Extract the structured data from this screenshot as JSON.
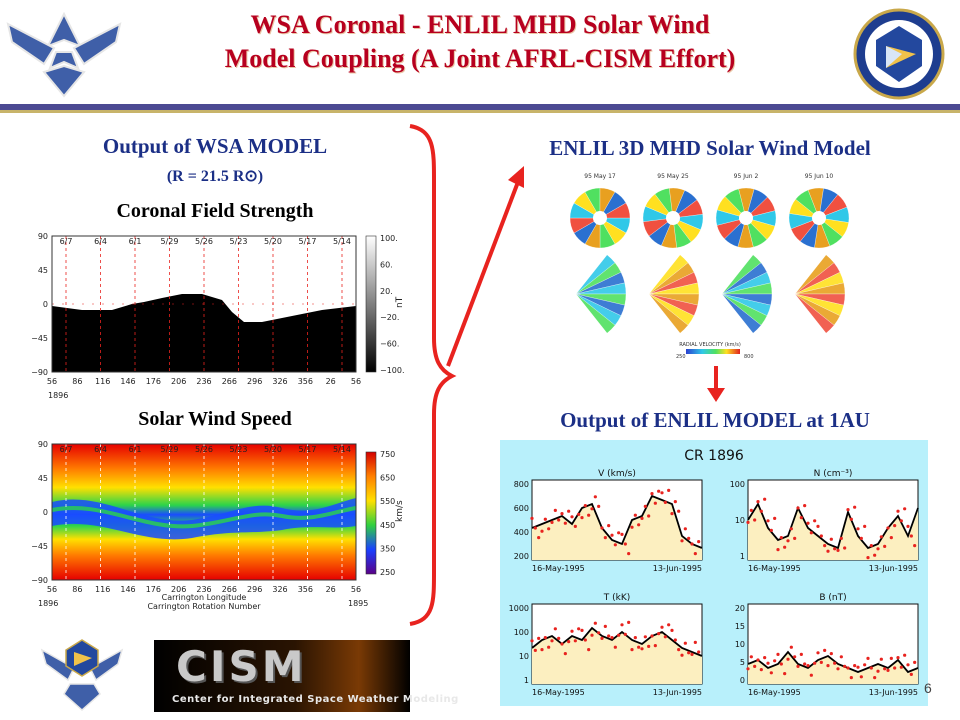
{
  "title": {
    "line1": "WSA Coronal - ENLIL MHD Solar Wind",
    "line2": "Model Coupling (A Joint AFRL-CISM Effort)"
  },
  "left": {
    "heading": "Output of WSA MODEL",
    "subheading": "(R = 21.5  R⊙)",
    "plot1_label": "Coronal Field Strength",
    "plot2_label": "Solar Wind Speed",
    "date_labels": [
      "6/7",
      "6/4",
      "6/1",
      "5/29",
      "5/26",
      "5/23",
      "5/20",
      "5/17",
      "5/14"
    ],
    "lat_ticks": [
      "90",
      "45",
      "0",
      "−45",
      "−90"
    ],
    "lon_ticks": [
      "56",
      "86",
      "116",
      "146",
      "176",
      "206",
      "236",
      "266",
      "296",
      "326",
      "356",
      "26",
      "56"
    ],
    "lon_start_rot": "1896",
    "lon_end_rot": "1895",
    "xlabel1": "Carrington Longitude",
    "xlabel2": "Carrington Rotation Number",
    "colorbar1_ticks": [
      "100.",
      "60.",
      "20.",
      "−20.",
      "−60.",
      "−100."
    ],
    "colorbar1_unit": "nT",
    "colorbar2_ticks": [
      "750",
      "650",
      "550",
      "450",
      "350",
      "250"
    ],
    "colorbar2_unit": "km/s"
  },
  "right": {
    "heading": "ENLIL 3D MHD Solar Wind Model",
    "snapshot_dates": [
      "95 May 17",
      "95 May 25",
      "95 Jun 2",
      "95 Jun 10"
    ],
    "colorbar_label": "RADIAL VELOCITY (km/s)",
    "colorbar_min": "250",
    "colorbar_max": "800",
    "output_heading": "Output of ENLIL MODEL at 1AU",
    "output_title": "CR 1896",
    "panels": [
      {
        "label": "V (km/s)",
        "yticks": [
          "800",
          "600",
          "400",
          "200"
        ]
      },
      {
        "label": "N (cm⁻³)",
        "yticks": [
          "100",
          "10",
          "1"
        ]
      },
      {
        "label": "T (kK)",
        "yticks": [
          "1000",
          "100",
          "10",
          "1"
        ]
      },
      {
        "label": "B (nT)",
        "yticks": [
          "20",
          "15",
          "10",
          "5",
          "0"
        ]
      }
    ],
    "date_start": "16-May-1995",
    "date_end": "13-Jun-1995"
  },
  "footer": {
    "cism_logo": "CISM",
    "cism_sub": "Center for Integrated Space Weather Modeling",
    "page_number": "6"
  },
  "icons": {
    "top_left": "air-force-wings-icon",
    "top_right": "afrl-shield-icon",
    "bottom_left": "air-force-wings-icon"
  },
  "colors": {
    "title": "#b7001f",
    "heading": "#1b2f86",
    "arrow": "#e8231f",
    "brace": "#e8231f",
    "header_band": "#4c4a92"
  }
}
